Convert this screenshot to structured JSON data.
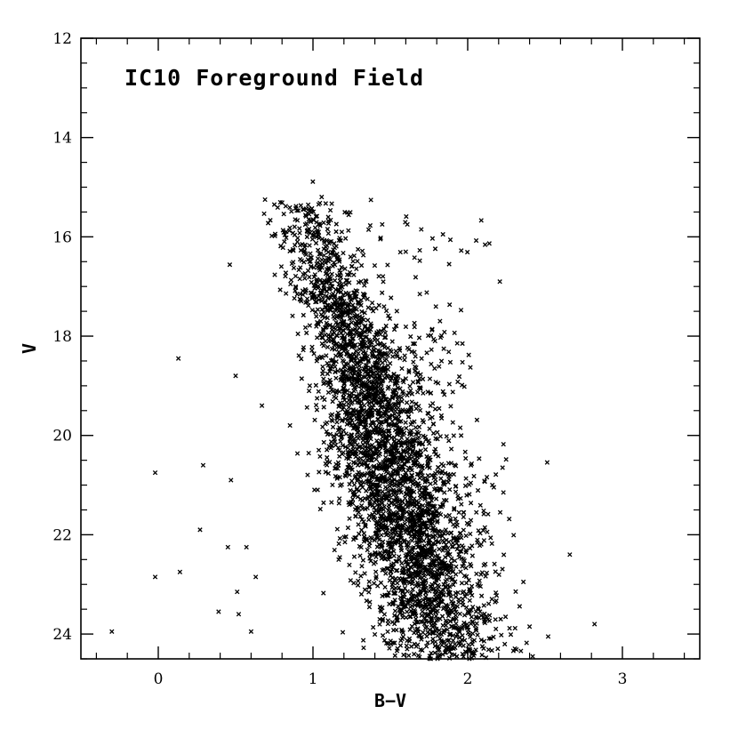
{
  "chart_data": {
    "type": "scatter",
    "title": "IC10 Foreground Field",
    "xlabel": "B−V",
    "ylabel": "V",
    "xlim": [
      -0.5,
      3.5
    ],
    "ylim": [
      24.5,
      12
    ],
    "y_inverted": true,
    "grid": false,
    "marker": "x",
    "marker_color": "#000000",
    "x_ticks": [
      0,
      1,
      2,
      3
    ],
    "x_tick_labels": [
      "0",
      "1",
      "2",
      "3"
    ],
    "y_ticks": [
      12,
      14,
      16,
      18,
      20,
      22,
      24
    ],
    "y_tick_labels": [
      "12",
      "14",
      "16",
      "18",
      "20",
      "22",
      "24"
    ],
    "x_minor_step": 0.2,
    "y_minor_step": 0.5,
    "outliers": [
      {
        "x": -0.3,
        "y": 23.95
      },
      {
        "x": -0.02,
        "y": 20.75
      },
      {
        "x": -0.02,
        "y": 22.85
      },
      {
        "x": 0.13,
        "y": 18.45
      },
      {
        "x": 0.14,
        "y": 22.75
      },
      {
        "x": 0.27,
        "y": 21.9
      },
      {
        "x": 0.29,
        "y": 20.6
      },
      {
        "x": 0.39,
        "y": 23.55
      },
      {
        "x": 0.45,
        "y": 22.25
      },
      {
        "x": 0.47,
        "y": 20.9
      },
      {
        "x": 0.5,
        "y": 18.8
      },
      {
        "x": 0.51,
        "y": 23.15
      },
      {
        "x": 0.52,
        "y": 23.6
      },
      {
        "x": 0.57,
        "y": 22.25
      },
      {
        "x": 0.6,
        "y": 23.95
      },
      {
        "x": 0.63,
        "y": 22.85
      },
      {
        "x": 0.67,
        "y": 19.4
      },
      {
        "x": 0.69,
        "y": 15.25
      },
      {
        "x": 0.75,
        "y": 15.35
      },
      {
        "x": 1.61,
        "y": 15.75
      },
      {
        "x": 1.7,
        "y": 15.85
      },
      {
        "x": 1.84,
        "y": 15.95
      },
      {
        "x": 1.88,
        "y": 16.55
      },
      {
        "x": 2.4,
        "y": 23.85
      },
      {
        "x": 2.42,
        "y": 24.45
      },
      {
        "x": 2.52,
        "y": 24.05
      },
      {
        "x": 2.66,
        "y": 22.4
      },
      {
        "x": 2.82,
        "y": 23.8
      },
      {
        "x": 2.21,
        "y": 21.55
      },
      {
        "x": 2.36,
        "y": 22.95
      }
    ],
    "population": {
      "n_points": 3400,
      "envelope": [
        {
          "y": 15.3,
          "x_left": 0.7,
          "x_right": 1.2
        },
        {
          "y": 16.5,
          "x_left": 0.78,
          "x_right": 1.3
        },
        {
          "y": 18.0,
          "x_left": 0.95,
          "x_right": 1.55
        },
        {
          "y": 19.0,
          "x_left": 1.03,
          "x_right": 1.65
        },
        {
          "y": 20.0,
          "x_left": 1.05,
          "x_right": 1.8
        },
        {
          "y": 21.0,
          "x_left": 1.12,
          "x_right": 1.95
        },
        {
          "y": 22.0,
          "x_left": 1.22,
          "x_right": 2.05
        },
        {
          "y": 23.0,
          "x_left": 1.3,
          "x_right": 2.15
        },
        {
          "y": 24.0,
          "x_left": 1.35,
          "x_right": 2.3
        },
        {
          "y": 24.5,
          "x_left": 1.4,
          "x_right": 2.35
        }
      ],
      "weights": [
        {
          "y": 15.3,
          "w": 0.25
        },
        {
          "y": 17.0,
          "w": 0.45
        },
        {
          "y": 18.5,
          "w": 0.8
        },
        {
          "y": 20.0,
          "w": 1.0
        },
        {
          "y": 22.0,
          "w": 1.1
        },
        {
          "y": 23.5,
          "w": 0.9
        },
        {
          "y": 24.5,
          "w": 0.5
        }
      ],
      "halo": [
        {
          "x": 1.3,
          "y": 16.3,
          "sx": 0.35,
          "sy": 0.5,
          "n": 60
        },
        {
          "x": 1.75,
          "y": 18.6,
          "sx": 0.15,
          "sy": 0.7,
          "n": 90
        },
        {
          "x": 1.95,
          "y": 21.0,
          "sx": 0.18,
          "sy": 0.6,
          "n": 70
        }
      ]
    }
  }
}
